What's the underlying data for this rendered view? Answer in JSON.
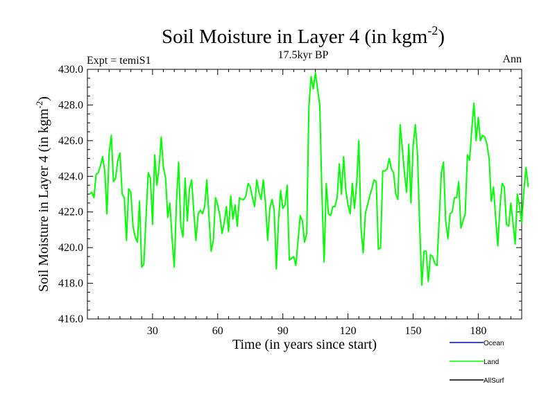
{
  "chart_data": {
    "type": "line",
    "title_main": "Soil Moisture in Layer 4 (in kgm",
    "title_sup": "-2",
    "title_close": ")",
    "subtitle": "17.5kyr BP",
    "left_label": "Expt = temiS1",
    "right_label": "Ann",
    "xlabel": "Time (in years since start)",
    "ylabel_main": "Soil Moisture in Layer 4 (in kgm",
    "ylabel_sup": "-2",
    "ylabel_close": ")",
    "xlim": [
      0,
      200
    ],
    "ylim": [
      416.0,
      430.0
    ],
    "xticks": [
      30,
      60,
      90,
      120,
      150,
      180
    ],
    "xtick_labels": [
      "30",
      "60",
      "90",
      "120",
      "150",
      "180"
    ],
    "yticks": [
      416,
      418,
      420,
      422,
      424,
      426,
      428,
      430
    ],
    "ytick_labels": [
      "416.0",
      "418.0",
      "420.0",
      "422.0",
      "424.0",
      "426.0",
      "428.0",
      "430.0"
    ],
    "legend": [
      {
        "name": "Ocean",
        "color": "#0000ff"
      },
      {
        "name": "Land",
        "color": "#00ff00"
      },
      {
        "name": "AllSurf",
        "color": "#000000"
      }
    ],
    "series": [
      {
        "name": "Land",
        "color": "#00ff00",
        "x_start": 1,
        "values": [
          423.0,
          423.1,
          422.8,
          424.1,
          424.2,
          424.6,
          425.1,
          424.3,
          421.9,
          425.3,
          426.3,
          423.7,
          423.9,
          424.9,
          425.3,
          423.0,
          422.8,
          420.4,
          423.3,
          423.1,
          421.2,
          420.6,
          420.3,
          422.6,
          418.9,
          419.1,
          421.7,
          424.2,
          423.9,
          421.3,
          425.2,
          423.5,
          424.5,
          426.2,
          424.5,
          423.9,
          421.7,
          422.5,
          420.5,
          418.9,
          422.5,
          424.8,
          421.2,
          420.6,
          423.9,
          421.5,
          423.3,
          423.8,
          422.0,
          420.4,
          421.9,
          422.1,
          421.9,
          422.3,
          423.8,
          421.7,
          419.8,
          420.4,
          422.8,
          422.4,
          421.8,
          420.8,
          421.4,
          422.3,
          420.9,
          422.9,
          421.6,
          422.4,
          421.2,
          422.8,
          422.7,
          422.7,
          422.9,
          423.6,
          423.4,
          422.8,
          422.3,
          423.8,
          423.1,
          422.7,
          423.8,
          422.5,
          420.4,
          422.2,
          422.7,
          422.1,
          418.8,
          421.5,
          423.2,
          422.2,
          422.4,
          423.5,
          419.3,
          419.4,
          419.5,
          419.0,
          420.4,
          421.8,
          421.5,
          420.3,
          420.8,
          427.9,
          429.6,
          428.9,
          429.8,
          428.9,
          428.0,
          423.0,
          419.2,
          423.6,
          421.9,
          421.8,
          422.3,
          422.3,
          422.8,
          424.7,
          423.0,
          425.1,
          423.2,
          422.4,
          421.9,
          423.6,
          422.2,
          423.6,
          426.0,
          421.1,
          419.7,
          421.9,
          422.4,
          422.9,
          423.3,
          423.8,
          423.7,
          419.9,
          420.0,
          424.3,
          424.3,
          424.4,
          425.0,
          424.4,
          424.2,
          423.0,
          422.7,
          426.9,
          425.6,
          424.2,
          423.1,
          425.8,
          422.5,
          425.7,
          426.9,
          425.3,
          421.3,
          417.9,
          419.8,
          419.8,
          418.1,
          419.6,
          419.5,
          419.1,
          419.0,
          421.6,
          424.2,
          424.8,
          421.5,
          420.5,
          421.9,
          422.0,
          422.8,
          422.8,
          423.7,
          421.1,
          421.5,
          421.9,
          425.2,
          424.9,
          426.6,
          428.1,
          426.0,
          427.3,
          426.0,
          426.3,
          426.2,
          425.8,
          425.0,
          422.6,
          423.4,
          421.7,
          420.1,
          422.3,
          423.6,
          423.4,
          421.3,
          421.2,
          422.5,
          421.4,
          420.2,
          423.0,
          422.3,
          421.4,
          423.2,
          424.5,
          423.4
        ]
      }
    ]
  }
}
